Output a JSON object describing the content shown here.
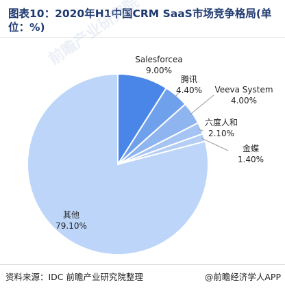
{
  "title": "图表10：2020年H1中国CRM SaaS市场竞争格局(单位：%)",
  "source": "资料来源：IDC 前瞻产业研究院整理",
  "credit": "@前瞻经济学人APP",
  "watermark": "前瞻产业研究院",
  "chart_data": {
    "type": "pie",
    "start_angle_deg": 0,
    "direction": "clockwise",
    "slices": [
      {
        "name": "Salesforcea",
        "value": 9.0,
        "label": "9.00%",
        "color": "#4a86e8"
      },
      {
        "name": "腾讯",
        "value": 4.4,
        "label": "4.40%",
        "color": "#6fa0ec"
      },
      {
        "name": "Veeva System",
        "value": 4.0,
        "label": "4.00%",
        "color": "#8fb5f0"
      },
      {
        "name": "六度人和",
        "value": 2.1,
        "label": "2.10%",
        "color": "#a6c4f3"
      },
      {
        "name": "金蝶",
        "value": 1.4,
        "label": "1.40%",
        "color": "#b3cdf5"
      },
      {
        "name": "其他",
        "value": 79.1,
        "label": "79.10%",
        "color": "#bdd5f9"
      }
    ]
  }
}
